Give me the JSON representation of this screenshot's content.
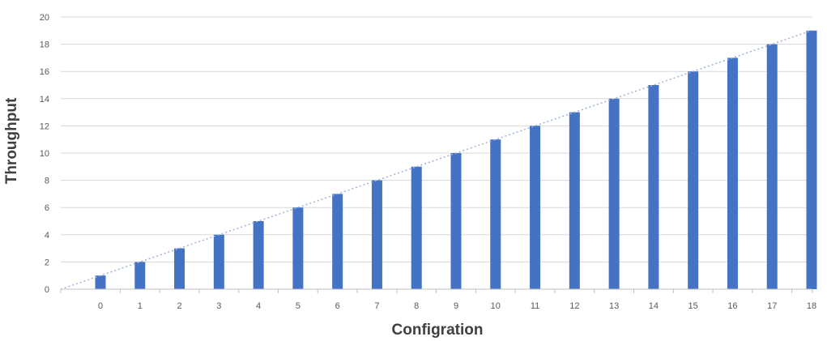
{
  "chart_data": {
    "type": "bar",
    "title": "",
    "xlabel": "Configration",
    "ylabel": "Throughput",
    "categories": [
      "0",
      "1",
      "2",
      "3",
      "4",
      "5",
      "6",
      "7",
      "8",
      "9",
      "10",
      "11",
      "12",
      "13",
      "14",
      "15",
      "16",
      "17",
      "18"
    ],
    "values": [
      1,
      2,
      3,
      4,
      5,
      6,
      7,
      8,
      9,
      10,
      11,
      12,
      13,
      14,
      15,
      16,
      17,
      18,
      19
    ],
    "ylim": [
      0,
      20
    ],
    "yticks": [
      0,
      2,
      4,
      6,
      8,
      10,
      12,
      14,
      16,
      18,
      20
    ],
    "grid": true,
    "legend": "none",
    "trendline": "linear, dotted",
    "colors": {
      "bar": "#4472C4",
      "grid": "#D9D9D9",
      "trendline": "#9DB3D9",
      "axis": "#BFBFBF"
    }
  }
}
